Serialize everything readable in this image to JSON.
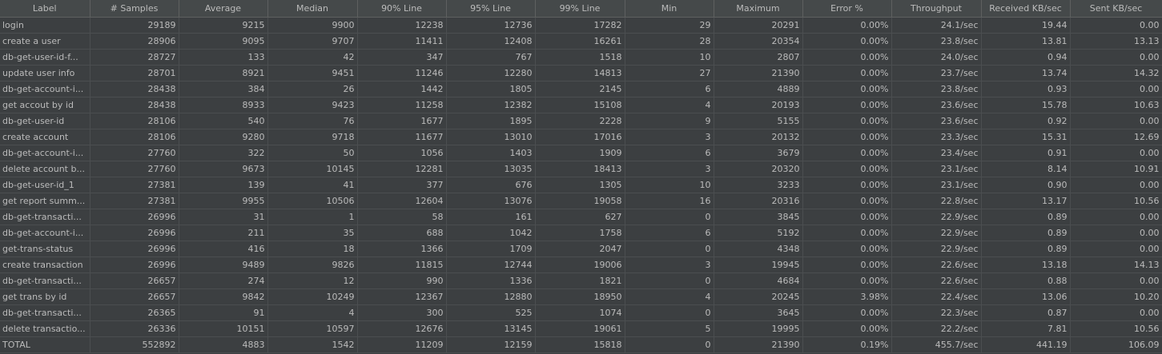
{
  "columns": [
    "Label",
    "# Samples",
    "Average",
    "Median",
    "90% Line",
    "95% Line",
    "99% Line",
    "Min",
    "Maximum",
    "Error %",
    "Throughput",
    "Received KB/sec",
    "Sent KB/sec"
  ],
  "rows": [
    [
      "login",
      "29189",
      "9215",
      "9900",
      "12238",
      "12736",
      "17282",
      "29",
      "20291",
      "0.00%",
      "24.1/sec",
      "19.44",
      "0.00"
    ],
    [
      "create a user",
      "28906",
      "9095",
      "9707",
      "11411",
      "12408",
      "16261",
      "28",
      "20354",
      "0.00%",
      "23.8/sec",
      "13.81",
      "13.13"
    ],
    [
      "db-get-user-id-f...",
      "28727",
      "133",
      "42",
      "347",
      "767",
      "1518",
      "10",
      "2807",
      "0.00%",
      "24.0/sec",
      "0.94",
      "0.00"
    ],
    [
      "update user info",
      "28701",
      "8921",
      "9451",
      "11246",
      "12280",
      "14813",
      "27",
      "21390",
      "0.00%",
      "23.7/sec",
      "13.74",
      "14.32"
    ],
    [
      "db-get-account-i...",
      "28438",
      "384",
      "26",
      "1442",
      "1805",
      "2145",
      "6",
      "4889",
      "0.00%",
      "23.8/sec",
      "0.93",
      "0.00"
    ],
    [
      "get accout by id",
      "28438",
      "8933",
      "9423",
      "11258",
      "12382",
      "15108",
      "4",
      "20193",
      "0.00%",
      "23.6/sec",
      "15.78",
      "10.63"
    ],
    [
      "db-get-user-id",
      "28106",
      "540",
      "76",
      "1677",
      "1895",
      "2228",
      "9",
      "5155",
      "0.00%",
      "23.6/sec",
      "0.92",
      "0.00"
    ],
    [
      "create account",
      "28106",
      "9280",
      "9718",
      "11677",
      "13010",
      "17016",
      "3",
      "20132",
      "0.00%",
      "23.3/sec",
      "15.31",
      "12.69"
    ],
    [
      "db-get-account-i...",
      "27760",
      "322",
      "50",
      "1056",
      "1403",
      "1909",
      "6",
      "3679",
      "0.00%",
      "23.4/sec",
      "0.91",
      "0.00"
    ],
    [
      "delete account b...",
      "27760",
      "9673",
      "10145",
      "12281",
      "13035",
      "18413",
      "3",
      "20320",
      "0.00%",
      "23.1/sec",
      "8.14",
      "10.91"
    ],
    [
      "db-get-user-id_1",
      "27381",
      "139",
      "41",
      "377",
      "676",
      "1305",
      "10",
      "3233",
      "0.00%",
      "23.1/sec",
      "0.90",
      "0.00"
    ],
    [
      "get report summ...",
      "27381",
      "9955",
      "10506",
      "12604",
      "13076",
      "19058",
      "16",
      "20316",
      "0.00%",
      "22.8/sec",
      "13.17",
      "10.56"
    ],
    [
      "db-get-transacti...",
      "26996",
      "31",
      "1",
      "58",
      "161",
      "627",
      "0",
      "3845",
      "0.00%",
      "22.9/sec",
      "0.89",
      "0.00"
    ],
    [
      "db-get-account-i...",
      "26996",
      "211",
      "35",
      "688",
      "1042",
      "1758",
      "6",
      "5192",
      "0.00%",
      "22.9/sec",
      "0.89",
      "0.00"
    ],
    [
      "get-trans-status",
      "26996",
      "416",
      "18",
      "1366",
      "1709",
      "2047",
      "0",
      "4348",
      "0.00%",
      "22.9/sec",
      "0.89",
      "0.00"
    ],
    [
      "create transaction",
      "26996",
      "9489",
      "9826",
      "11815",
      "12744",
      "19006",
      "3",
      "19945",
      "0.00%",
      "22.6/sec",
      "13.18",
      "14.13"
    ],
    [
      "db-get-transacti...",
      "26657",
      "274",
      "12",
      "990",
      "1336",
      "1821",
      "0",
      "4684",
      "0.00%",
      "22.6/sec",
      "0.88",
      "0.00"
    ],
    [
      "get trans by id",
      "26657",
      "9842",
      "10249",
      "12367",
      "12880",
      "18950",
      "4",
      "20245",
      "3.98%",
      "22.4/sec",
      "13.06",
      "10.20"
    ],
    [
      "db-get-transacti...",
      "26365",
      "91",
      "4",
      "300",
      "525",
      "1074",
      "0",
      "3645",
      "0.00%",
      "22.3/sec",
      "0.87",
      "0.00"
    ],
    [
      "delete transactio...",
      "26336",
      "10151",
      "10597",
      "12676",
      "13145",
      "19061",
      "5",
      "19995",
      "0.00%",
      "22.2/sec",
      "7.81",
      "10.56"
    ],
    [
      "TOTAL",
      "552892",
      "4883",
      "1542",
      "11209",
      "12159",
      "15818",
      "0",
      "21390",
      "0.19%",
      "455.7/sec",
      "441.19",
      "106.09"
    ]
  ]
}
